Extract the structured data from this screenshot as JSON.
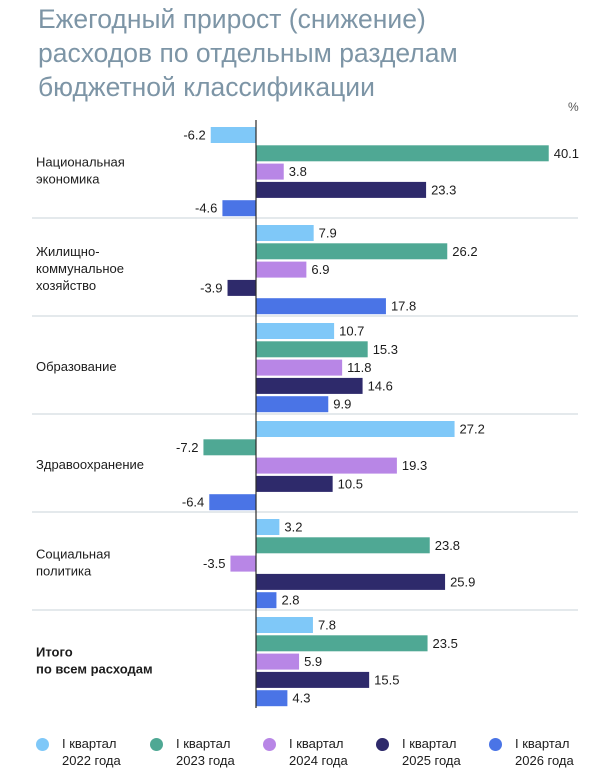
{
  "title_lines": [
    "Ежегодный прирост (снижение)",
    "расходов по отдельным разделам",
    "бюджетной классификации"
  ],
  "unit": "%",
  "chart_data": {
    "type": "bar",
    "orientation": "horizontal",
    "groups": [
      {
        "label_lines": [
          "Национальная",
          "экономика"
        ],
        "bold": false,
        "values": [
          -6.2,
          40.1,
          3.8,
          23.3,
          -4.6
        ]
      },
      {
        "label_lines": [
          "Жилищно-",
          "коммунальное",
          "хозяйство"
        ],
        "bold": false,
        "values": [
          7.9,
          26.2,
          6.9,
          -3.9,
          17.8
        ]
      },
      {
        "label_lines": [
          "Образование"
        ],
        "bold": false,
        "values": [
          10.7,
          15.3,
          11.8,
          14.6,
          9.9
        ]
      },
      {
        "label_lines": [
          "Здравоохранение"
        ],
        "bold": false,
        "values": [
          27.2,
          -7.2,
          19.3,
          10.5,
          -6.4
        ]
      },
      {
        "label_lines": [
          "Социальная",
          "политика"
        ],
        "bold": false,
        "values": [
          3.2,
          23.8,
          -3.5,
          25.9,
          2.8
        ]
      },
      {
        "label_lines": [
          "Итого",
          "по всем расходам"
        ],
        "bold": true,
        "values": [
          7.8,
          23.5,
          5.9,
          15.5,
          4.3
        ]
      }
    ],
    "series": [
      {
        "name_lines": [
          "I квартал",
          "2022 года"
        ],
        "color": "#7fc8f8"
      },
      {
        "name_lines": [
          "I квартал",
          "2023 года"
        ],
        "color": "#4fa894"
      },
      {
        "name_lines": [
          "I квартал",
          "2024 года"
        ],
        "color": "#b886e6"
      },
      {
        "name_lines": [
          "I квартал",
          "2025 года"
        ],
        "color": "#2e2a6b"
      },
      {
        "name_lines": [
          "I квартал",
          "2026 года"
        ],
        "color": "#4a74e6"
      }
    ]
  }
}
